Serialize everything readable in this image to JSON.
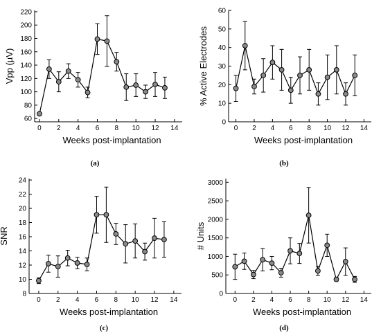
{
  "chart_data": [
    {
      "type": "line",
      "panel": "(a)",
      "xlabel": "Weeks post-implantation",
      "ylabel": "Vpp (µV)",
      "xlim": [
        -0.5,
        14.8
      ],
      "ylim": [
        55,
        222
      ],
      "xticks": [
        0,
        2,
        4,
        6,
        8,
        10,
        12,
        14
      ],
      "yticks": [
        60,
        80,
        100,
        120,
        140,
        160,
        180,
        200,
        220
      ],
      "marker": "circle",
      "series": [
        {
          "x": [
            0,
            1,
            2,
            3,
            4,
            5,
            6,
            7,
            8,
            9,
            10,
            11,
            12,
            13
          ],
          "y": [
            67,
            134,
            115,
            131,
            118,
            99,
            179,
            176,
            145,
            107,
            110,
            100,
            111,
            106
          ],
          "err": [
            0,
            14,
            15,
            11,
            11,
            8,
            23,
            38,
            14,
            20,
            17,
            10,
            18,
            16
          ]
        }
      ]
    },
    {
      "type": "line",
      "panel": "(b)",
      "xlabel": "Weeks post-implantation",
      "ylabel": "% Active Electrodes",
      "xlim": [
        -0.8,
        14.8
      ],
      "ylim": [
        0,
        60
      ],
      "xticks": [
        0,
        2,
        4,
        6,
        8,
        10,
        12,
        14
      ],
      "yticks": [
        0,
        10,
        20,
        30,
        40,
        50,
        60
      ],
      "marker": "circle",
      "series": [
        {
          "x": [
            0,
            1,
            2,
            3,
            4,
            5,
            6,
            7,
            8,
            9,
            10,
            11,
            12,
            13
          ],
          "y": [
            18,
            41,
            19,
            25,
            32,
            28,
            17,
            25,
            28,
            15,
            24,
            28,
            15,
            25
          ],
          "err": [
            7,
            13,
            4,
            9,
            9,
            11,
            7,
            10,
            11,
            6,
            12,
            13,
            6,
            11
          ]
        }
      ]
    },
    {
      "type": "line",
      "panel": "(c)",
      "xlabel": "Weeks post-implantation",
      "ylabel": "SNR",
      "xlim": [
        -1,
        14.8
      ],
      "ylim": [
        8,
        24.2
      ],
      "xticks": [
        0,
        2,
        4,
        6,
        8,
        10,
        12,
        14
      ],
      "yticks": [
        8,
        10,
        12,
        14,
        16,
        18,
        20,
        22,
        24
      ],
      "marker": "circle",
      "series": [
        {
          "x": [
            0,
            1,
            2,
            3,
            4,
            5,
            6,
            7,
            8,
            9,
            10,
            11,
            12,
            13
          ],
          "y": [
            9.8,
            12.2,
            11.8,
            13.0,
            12.3,
            12.1,
            19.1,
            19.1,
            16.4,
            15.0,
            15.4,
            13.9,
            15.8,
            15.6
          ],
          "err": [
            0.4,
            1.2,
            1.5,
            1.1,
            0.8,
            0.9,
            2.6,
            3.9,
            1.5,
            2.7,
            2.4,
            1.2,
            2.8,
            2.5
          ]
        }
      ]
    },
    {
      "type": "line",
      "panel": "(d)",
      "xlabel": "Weeks post-implantation",
      "ylabel": "# Units",
      "xlim": [
        -1,
        14.8
      ],
      "ylim": [
        0,
        3100
      ],
      "xticks": [
        0,
        2,
        4,
        6,
        8,
        10,
        12,
        14
      ],
      "yticks": [
        0,
        500,
        1000,
        1500,
        2000,
        2500,
        3000
      ],
      "marker": "circle",
      "series": [
        {
          "x": [
            0,
            1,
            2,
            3,
            4,
            5,
            6,
            7,
            8,
            9,
            10,
            11,
            12,
            13
          ],
          "y": [
            720,
            870,
            510,
            910,
            820,
            560,
            1150,
            1080,
            2110,
            610,
            1300,
            380,
            860,
            380
          ],
          "err": [
            340,
            220,
            110,
            300,
            180,
            120,
            350,
            270,
            750,
            120,
            300,
            50,
            370,
            80
          ]
        }
      ]
    }
  ]
}
